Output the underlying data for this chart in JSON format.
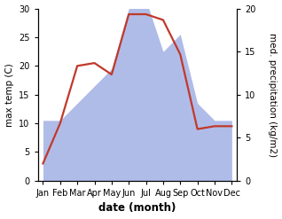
{
  "months": [
    "Jan",
    "Feb",
    "Mar",
    "Apr",
    "May",
    "Jun",
    "Jul",
    "Aug",
    "Sep",
    "Oct",
    "Nov",
    "Dec"
  ],
  "month_positions": [
    0,
    1,
    2,
    3,
    4,
    5,
    6,
    7,
    8,
    9,
    10,
    11
  ],
  "temperature": [
    3.0,
    10.0,
    20.0,
    20.5,
    18.5,
    29.0,
    29.0,
    28.0,
    22.0,
    9.0,
    9.5,
    9.5
  ],
  "precipitation": [
    7.0,
    7.0,
    9.0,
    11.0,
    13.0,
    20.0,
    21.0,
    15.0,
    17.0,
    9.0,
    7.0,
    7.0
  ],
  "temp_color": "#c0392b",
  "precip_color": "#b0bce8",
  "temp_ylim": [
    0,
    30
  ],
  "precip_ylim": [
    0,
    20
  ],
  "temp_yticks": [
    0,
    5,
    10,
    15,
    20,
    25,
    30
  ],
  "precip_yticks": [
    0,
    5,
    10,
    15,
    20
  ],
  "ylabel_left": "max temp (C)",
  "ylabel_right": "med. precipitation (kg/m2)",
  "xlabel": "date (month)",
  "bg_color": "#ffffff",
  "label_fontsize": 7.5,
  "tick_fontsize": 7.0,
  "xlabel_fontsize": 8.5,
  "line_width": 1.6
}
